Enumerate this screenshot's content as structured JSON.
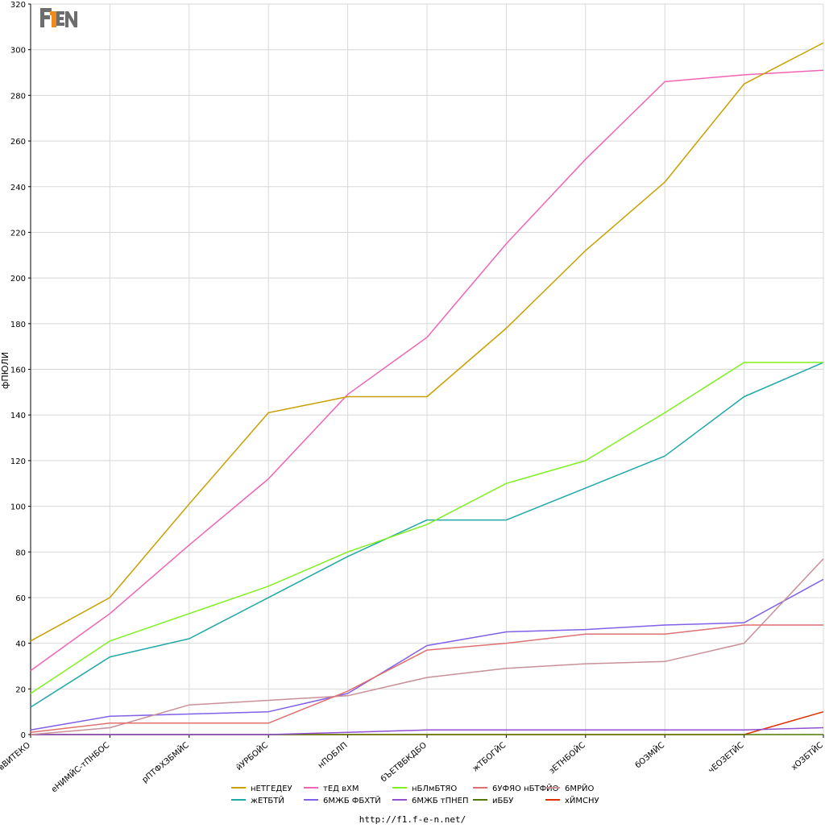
{
  "logo": {
    "text": "F1EN",
    "colors": {
      "gray": "#6d6d6d",
      "orange": "#f08a1c"
    }
  },
  "footer": {
    "url": "http://f1.f-e-n.net/"
  },
  "chart_data": {
    "type": "line",
    "title": "",
    "xlabel": "",
    "ylabel": "фПЮЛИ",
    "ylim": [
      0,
      320
    ],
    "yticks": [
      0,
      20,
      40,
      60,
      80,
      100,
      120,
      140,
      160,
      180,
      200,
      220,
      240,
      260,
      280,
      300,
      320
    ],
    "grid": true,
    "legend_position": "bottom",
    "categories": [
      "вВИТЕКО",
      "еНИМЙС-тПНВОС",
      "рПТФХЗБМЙС",
      "йУРБОЙС",
      "нПОБЛП",
      "бЪЕТВБКДБО",
      "жТБОГЙС",
      "зЕТНБОЙС",
      "бОЗМЙС",
      "чЕОЗЕТЙС",
      "хОЗБТЙС"
    ],
    "categories_display": [
      "вВИТЕКО",
      "еНИМЙС-тПНБОС",
      "рПТФХЗБМЙС",
      "йУРБОЙС",
      "нПОБЛП",
      "бЪЕТВБКДБО",
      "жТБОГЙС",
      "зЕТНБОЙС",
      "бОЗМЙС",
      "чЕОЗЕТЙС",
      "хОЗБТЙС"
    ],
    "series": [
      {
        "name": "нЕТГЕДЕУ",
        "color": "#c8a000",
        "values": [
          41,
          60,
          101,
          141,
          148,
          148,
          178,
          212,
          242,
          285,
          303
        ]
      },
      {
        "name": "тЕД вХМ",
        "color": "#f064b4",
        "values": [
          28,
          53,
          83,
          112,
          149,
          174,
          215,
          252,
          286,
          289,
          291
        ]
      },
      {
        "name": "нБЛмБТЯО",
        "color": "#80f020",
        "values": [
          18,
          41,
          53,
          65,
          80,
          92,
          110,
          120,
          141,
          163,
          163
        ]
      },
      {
        "name": "6УФЯО нБТФЙО",
        "color": "#e07070",
        "values": [
          1,
          5,
          5,
          5,
          19,
          37,
          40,
          44,
          44,
          48,
          48
        ]
      },
      {
        "name": "6МРЙО",
        "color": "#c89098",
        "values": [
          0,
          3,
          13,
          15,
          17,
          25,
          29,
          31,
          32,
          40,
          77
        ]
      },
      {
        "name": "жЕТБТЙ",
        "color": "#20a8a8",
        "values": [
          12,
          34,
          42,
          60,
          78,
          94,
          94,
          108,
          122,
          148,
          163
        ]
      },
      {
        "name": "6МЖБ ФБХТЙ",
        "color": "#8060e8",
        "values": [
          2,
          8,
          9,
          10,
          18,
          39,
          45,
          46,
          48,
          49,
          68
        ]
      },
      {
        "name": "6МЖБ тПНЕП",
        "color": "#9050d0",
        "values": [
          0,
          0,
          0,
          0,
          1,
          2,
          2,
          2,
          2,
          2,
          3
        ]
      },
      {
        "name": "иББУ",
        "color": "#507800",
        "values": [
          0,
          0,
          0,
          0,
          0,
          0,
          0,
          0,
          0,
          0,
          0
        ]
      },
      {
        "name": "хЙМСНУ",
        "color": "#e03000",
        "values": [
          0,
          0,
          0,
          0,
          0,
          0,
          0,
          0,
          0,
          0,
          10
        ]
      }
    ],
    "legend_rows": [
      [
        "нЕТГЕДЕУ",
        "тЕД вХМ",
        "нБЛмБТЯО",
        "6УФЯО нБТФЙО",
        "6МРЙО"
      ],
      [
        "жЕТБТЙ",
        "6МЖБ ФБХТЙ",
        "6МЖБ тПНЕП",
        "иББУ",
        "хЙМСНУ"
      ]
    ]
  }
}
